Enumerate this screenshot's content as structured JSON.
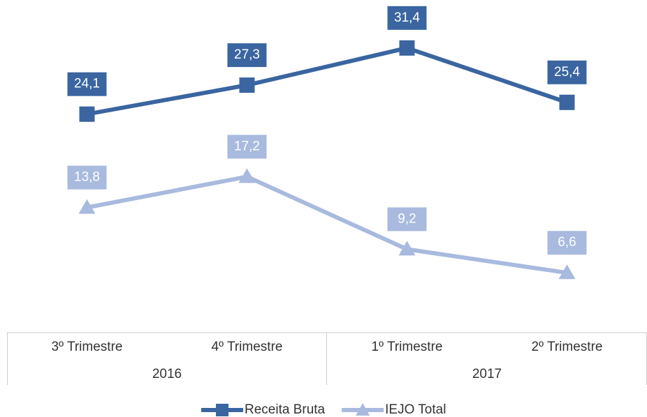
{
  "chart_data": {
    "type": "line",
    "categories": [
      "3º Trimestre",
      "4º Trimestre",
      "1º Trimestre",
      "2º Trimestre"
    ],
    "groups": [
      {
        "label": "2016",
        "count": 2
      },
      {
        "label": "2017",
        "count": 2
      }
    ],
    "series": [
      {
        "name": "Receita Bruta",
        "color": "#3a65a0",
        "marker": "square",
        "values": [
          24.1,
          27.3,
          31.4,
          25.4
        ],
        "value_labels": [
          "24,1",
          "27,3",
          "31,4",
          "25,4"
        ]
      },
      {
        "name": "IEJO Total",
        "color": "#a8bade",
        "marker": "triangle",
        "values": [
          13.8,
          17.2,
          9.2,
          6.6
        ],
        "value_labels": [
          "13,8",
          "17,2",
          "9,2",
          "6,6"
        ]
      }
    ],
    "ylim": [
      0,
      35
    ],
    "legend": "bottom"
  }
}
